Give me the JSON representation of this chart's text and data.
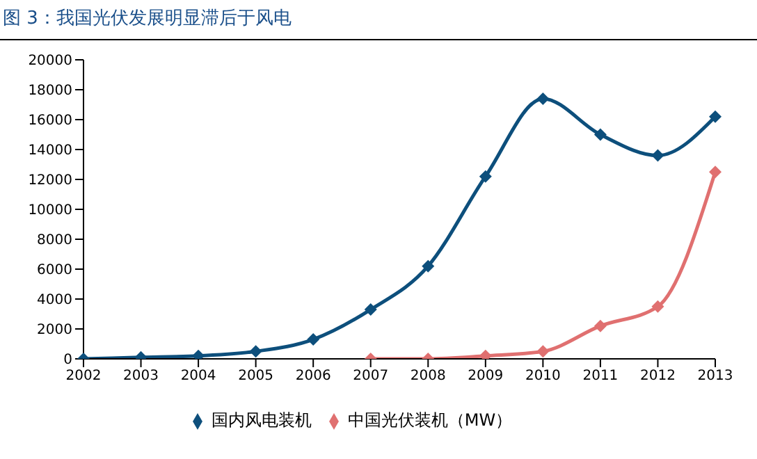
{
  "chart_data": {
    "type": "line",
    "title": "图 3：我国光伏发展明显滞后于风电",
    "categories": [
      "2002",
      "2003",
      "2004",
      "2005",
      "2006",
      "2007",
      "2008",
      "2009",
      "2010",
      "2011",
      "2012",
      "2013"
    ],
    "series": [
      {
        "name": "国内风电装机",
        "color": "#0d4f7c",
        "values": [
          0,
          100,
          200,
          500,
          1300,
          3300,
          6200,
          12200,
          17400,
          15000,
          13600,
          16200
        ]
      },
      {
        "name": "中国光伏装机（MW）",
        "color": "#e07070",
        "values": [
          null,
          null,
          null,
          null,
          null,
          0,
          0,
          200,
          500,
          2200,
          3500,
          12500
        ]
      }
    ],
    "ylim": [
      0,
      20000
    ],
    "yticks": [
      0,
      2000,
      4000,
      6000,
      8000,
      10000,
      12000,
      14000,
      16000,
      18000,
      20000
    ],
    "grid": false,
    "legend": "bottom",
    "marker": "diamond",
    "line_style": "solid"
  }
}
